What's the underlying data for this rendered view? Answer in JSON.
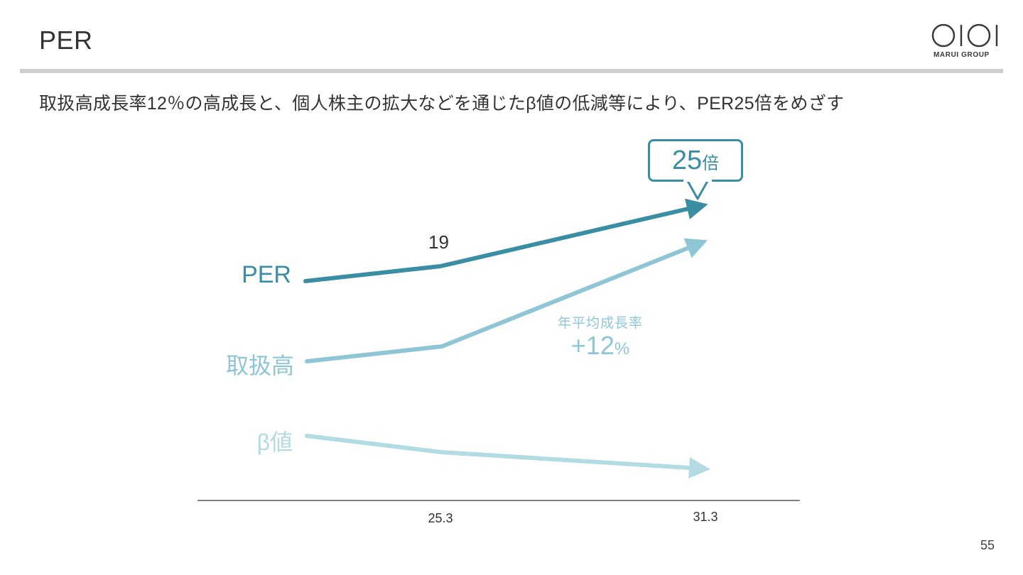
{
  "page": {
    "title": "PER",
    "subtitle": "取扱高成長率12％の高成長と、個人株主の拡大などを通じたβ値の低減等により、PER25倍をめざす",
    "page_number": "55"
  },
  "logo": {
    "mark": "OIOI",
    "text": "MARUI GROUP"
  },
  "callout": {
    "value": "25",
    "unit": "倍"
  },
  "annotation": {
    "caption": "年平均成長率",
    "value": "+12",
    "unit": "%"
  },
  "colors": {
    "per": "#3a8ea3",
    "volume": "#8ec6d6",
    "beta": "#b3dbe4",
    "axis": "#555555",
    "rule": "#cfcfcf"
  },
  "chart_data": {
    "type": "line",
    "title": "",
    "x": [
      "",
      "25.3",
      "31.3"
    ],
    "tick_labels": [
      "25.3",
      "31.3"
    ],
    "series": [
      {
        "name": "PER",
        "point_labels": [
          "",
          "19",
          ""
        ],
        "color": "#3a8ea3"
      },
      {
        "name": "取扱高",
        "color": "#8ec6d6"
      },
      {
        "name": "β値",
        "color": "#b3dbe4"
      }
    ],
    "grid": false,
    "legend": "left"
  }
}
